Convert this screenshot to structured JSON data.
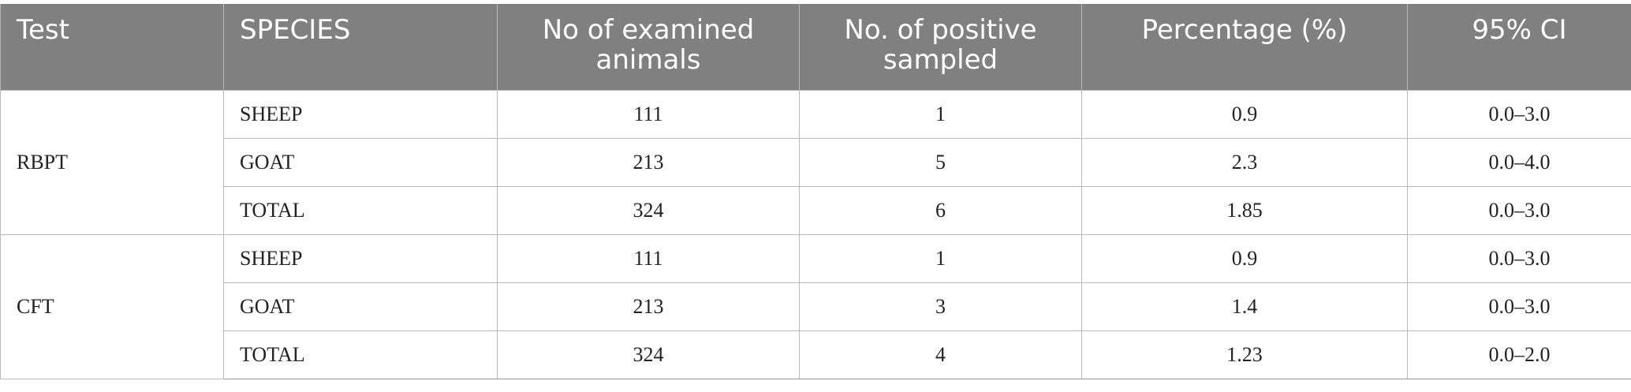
{
  "table": {
    "headers": [
      "Test",
      "SPECIES",
      "No of examined animals",
      "No. of positive sampled",
      "Percentage (%)",
      "95% CI"
    ],
    "groups": [
      {
        "test": "RBPT",
        "rows": [
          [
            "SHEEP",
            "111",
            "1",
            "0.9",
            "0.0–3.0"
          ],
          [
            "GOAT",
            "213",
            "5",
            "2.3",
            "0.0–4.0"
          ],
          [
            "TOTAL",
            "324",
            "6",
            "1.85",
            "0.0–3.0"
          ]
        ]
      },
      {
        "test": "CFT",
        "rows": [
          [
            "SHEEP",
            "111",
            "1",
            "0.9",
            "0.0–3.0"
          ],
          [
            "GOAT",
            "213",
            "3",
            "1.4",
            "0.0–3.0"
          ],
          [
            "TOTAL",
            "324",
            "4",
            "1.23",
            "0.0–2.0"
          ]
        ]
      }
    ]
  },
  "colors": {
    "header_bg": "#808080",
    "header_text": "#ffffff",
    "grid_line": "#b9b9b9"
  }
}
